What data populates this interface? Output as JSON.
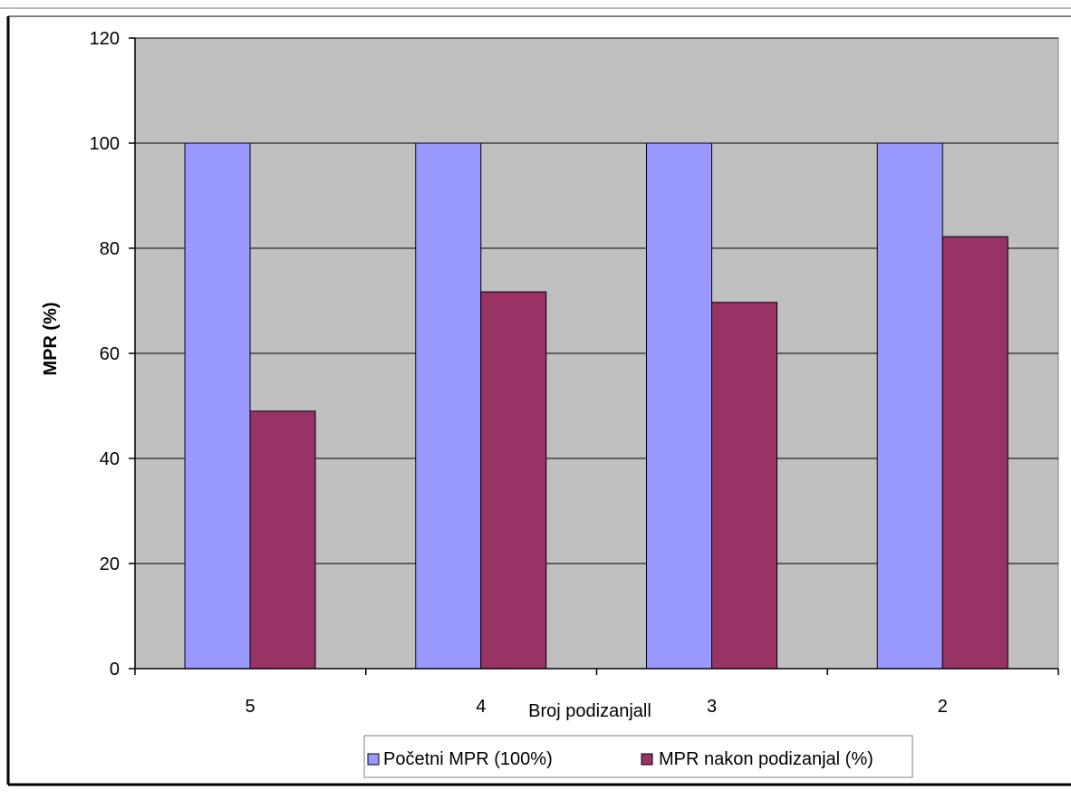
{
  "chart_data": {
    "type": "bar",
    "categories": [
      "5",
      "4",
      "3",
      "2"
    ],
    "series": [
      {
        "name": "Početni MPR (100%)",
        "values": [
          100,
          100,
          100,
          100
        ],
        "color": "#9999ff"
      },
      {
        "name": "MPR nakon podizanjal (%)",
        "values": [
          49,
          71.7,
          69.7,
          82.2
        ],
        "color": "#993366"
      }
    ],
    "xlabel": "Broj podizanjall",
    "ylabel": "MPR (%)",
    "ylim": [
      0,
      120
    ],
    "yticks": [
      0,
      20,
      40,
      60,
      80,
      100,
      120
    ],
    "grid": true,
    "legend_position": "bottom",
    "plot_background": "#c0c0c0"
  }
}
